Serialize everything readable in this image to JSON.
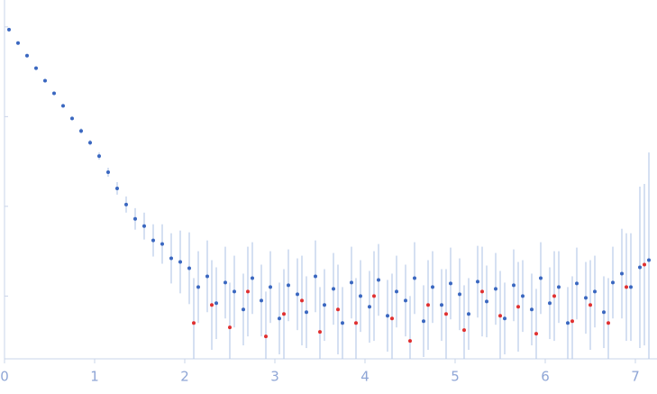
{
  "chart_data": {
    "type": "scatter",
    "xlim": [
      0,
      7.24
    ],
    "xticks": [
      0,
      1,
      2,
      3,
      4,
      5,
      6,
      7
    ],
    "ylim": [
      -0.7,
      3.3
    ],
    "yticks": [
      0,
      1,
      2,
      3
    ],
    "series": [
      {
        "color": "#3a67c0",
        "errorcolor": "#b9cbea",
        "x": [
          0.05,
          0.15,
          0.25,
          0.35,
          0.45,
          0.55,
          0.65,
          0.75,
          0.85,
          0.95,
          1.05,
          1.15,
          1.25,
          1.35,
          1.45,
          1.55,
          1.65,
          1.75,
          1.85,
          1.95,
          2.05,
          2.15,
          2.25,
          2.35,
          2.45,
          2.55,
          2.65,
          2.75,
          2.85,
          2.95,
          3.05,
          3.15,
          3.25,
          3.35,
          3.45,
          3.55,
          3.65,
          3.75,
          3.85,
          3.95,
          4.05,
          4.15,
          4.25,
          4.35,
          4.45,
          4.55,
          4.65,
          4.75,
          4.85,
          4.95,
          5.05,
          5.15,
          5.25,
          5.35,
          5.45,
          5.55,
          5.65,
          5.75,
          5.85,
          5.95,
          6.05,
          6.15,
          6.25,
          6.35,
          6.45,
          6.55,
          6.65,
          6.75,
          6.85,
          6.95,
          7.05,
          7.15
        ],
        "values": [
          2.97,
          2.82,
          2.68,
          2.54,
          2.4,
          2.26,
          2.12,
          1.98,
          1.84,
          1.71,
          1.56,
          1.38,
          1.2,
          1.02,
          0.86,
          0.78,
          0.62,
          0.58,
          0.42,
          0.38,
          0.31,
          0.1,
          0.22,
          -0.08,
          0.15,
          0.05,
          -0.15,
          0.2,
          -0.05,
          0.1,
          -0.25,
          0.12,
          0.02,
          -0.18,
          0.22,
          -0.1,
          0.08,
          -0.3,
          0.15,
          0,
          -0.12,
          0.18,
          -0.22,
          0.05,
          -0.05,
          0.2,
          -0.28,
          0.1,
          -0.1,
          0.14,
          0.02,
          -0.2,
          0.16,
          -0.06,
          0.08,
          -0.25,
          0.12,
          0,
          -0.15,
          0.2,
          -0.08,
          0.1,
          -0.3,
          0.14,
          -0.02,
          0.05,
          -0.18,
          0.15,
          0.25,
          0.1,
          0.32,
          0.4
        ],
        "errors": [
          0.02,
          0.02,
          0.02,
          0.02,
          0.02,
          0.02,
          0.02,
          0.02,
          0.03,
          0.03,
          0.04,
          0.05,
          0.07,
          0.09,
          0.12,
          0.15,
          0.18,
          0.22,
          0.28,
          0.35,
          0.4,
          0.4,
          0.4,
          0.4,
          0.4,
          0.4,
          0.4,
          0.4,
          0.4,
          0.4,
          0.4,
          0.4,
          0.4,
          0.4,
          0.4,
          0.4,
          0.4,
          0.4,
          0.4,
          0.4,
          0.4,
          0.4,
          0.4,
          0.4,
          0.4,
          0.4,
          0.4,
          0.4,
          0.4,
          0.4,
          0.4,
          0.4,
          0.4,
          0.4,
          0.4,
          0.4,
          0.4,
          0.4,
          0.4,
          0.4,
          0.4,
          0.4,
          0.4,
          0.4,
          0.4,
          0.4,
          0.4,
          0.4,
          0.5,
          0.6,
          0.9,
          1.2
        ]
      },
      {
        "color": "#e03030",
        "errorcolor": "#b9cbea",
        "x": [
          2.1,
          2.3,
          2.5,
          2.7,
          2.9,
          3.1,
          3.3,
          3.5,
          3.7,
          3.9,
          4.1,
          4.3,
          4.5,
          4.7,
          4.9,
          5.1,
          5.3,
          5.5,
          5.7,
          5.9,
          6.1,
          6.3,
          6.5,
          6.7,
          6.9,
          7.1
        ],
        "values": [
          -0.3,
          -0.1,
          -0.35,
          0.05,
          -0.45,
          -0.2,
          -0.05,
          -0.4,
          -0.15,
          -0.3,
          0.0,
          -0.25,
          -0.5,
          -0.1,
          -0.2,
          -0.38,
          0.05,
          -0.22,
          -0.12,
          -0.42,
          0.0,
          -0.28,
          -0.1,
          -0.3,
          0.1,
          0.35
        ],
        "errors": [
          0.5,
          0.5,
          0.5,
          0.5,
          0.5,
          0.5,
          0.5,
          0.5,
          0.5,
          0.5,
          0.5,
          0.5,
          0.5,
          0.5,
          0.5,
          0.5,
          0.5,
          0.5,
          0.5,
          0.5,
          0.5,
          0.5,
          0.5,
          0.5,
          0.6,
          0.9
        ]
      }
    ]
  }
}
